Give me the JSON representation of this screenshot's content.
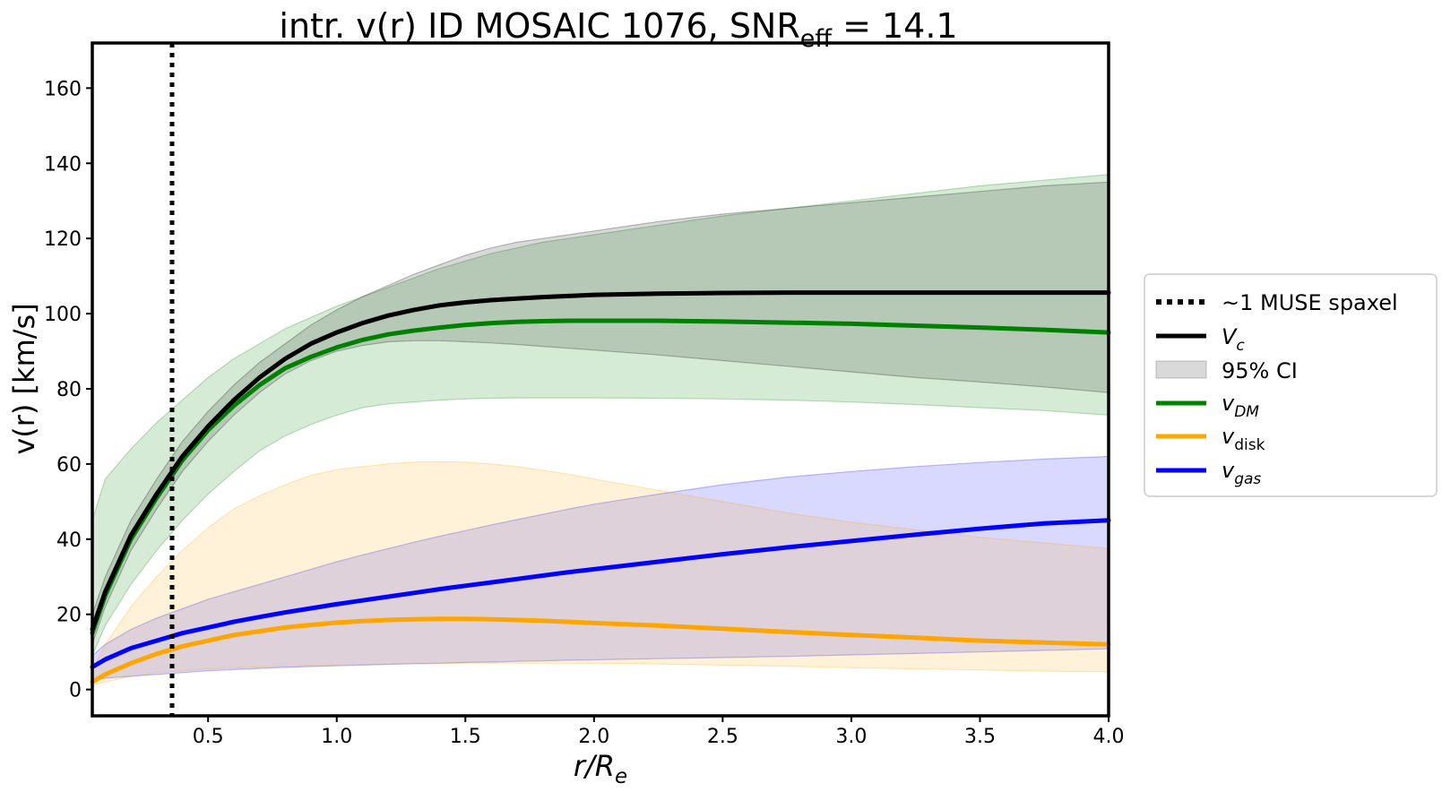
{
  "chart_data": {
    "type": "line",
    "title": {
      "prefix": "intr. v(r) ID MOSAIC 1076, SNR",
      "subscript": "eff",
      "suffix": " = 14.1"
    },
    "xlabel": {
      "base": "r/R",
      "subscript": "e"
    },
    "ylabel": "v(r) [km/s]",
    "xlim": [
      0.05,
      4.0
    ],
    "ylim": [
      -7,
      172
    ],
    "xticks": [
      0.5,
      1.0,
      1.5,
      2.0,
      2.5,
      3.0,
      3.5,
      4.0
    ],
    "xtick_labels": [
      "0.5",
      "1.0",
      "1.5",
      "2.0",
      "2.5",
      "3.0",
      "3.5",
      "4.0"
    ],
    "yticks": [
      0,
      20,
      40,
      60,
      80,
      100,
      120,
      140,
      160
    ],
    "ytick_labels": [
      "0",
      "20",
      "40",
      "60",
      "80",
      "100",
      "120",
      "140",
      "160"
    ],
    "vline": {
      "x": 0.36,
      "label": "~1 MUSE spaxel"
    },
    "x": [
      0.05,
      0.1,
      0.2,
      0.3,
      0.4,
      0.5,
      0.6,
      0.7,
      0.8,
      0.9,
      1.0,
      1.1,
      1.2,
      1.3,
      1.4,
      1.5,
      1.6,
      1.7,
      1.8,
      1.9,
      2.0,
      2.25,
      2.5,
      2.75,
      3.0,
      3.25,
      3.5,
      3.75,
      4.0
    ],
    "series": [
      {
        "name": "v_c",
        "color": "#000000",
        "values": [
          16,
          26,
          41,
          52,
          62,
          70,
          77,
          83,
          88,
          92,
          95,
          97.5,
          99.5,
          101,
          102.2,
          103,
          103.6,
          104,
          104.4,
          104.7,
          105,
          105.3,
          105.5,
          105.6,
          105.6,
          105.6,
          105.6,
          105.6,
          105.6
        ],
        "ci_lower": [
          12,
          22,
          37,
          48,
          58,
          66,
          73,
          79,
          84,
          87.5,
          90,
          91.5,
          92.5,
          92.8,
          92.8,
          92.5,
          92.2,
          91.8,
          91.3,
          90.8,
          90.3,
          89,
          87.5,
          86,
          84.5,
          83,
          81.8,
          80.5,
          79
        ],
        "ci_upper": [
          20,
          30,
          45,
          56,
          66,
          74,
          81,
          87,
          92,
          97,
          101,
          104.5,
          107.5,
          110.5,
          113,
          115.5,
          117.5,
          119,
          120,
          121,
          122,
          124.5,
          126.5,
          128,
          129.5,
          131,
          132.5,
          134,
          135
        ]
      },
      {
        "name": "v_DM",
        "color": "#008000",
        "band_color": "#7cbf7c",
        "values": [
          15,
          25,
          40,
          51,
          61,
          69,
          75.5,
          81,
          85.5,
          88.5,
          91,
          93,
          94.5,
          95.5,
          96.3,
          97,
          97.5,
          97.8,
          98,
          98.1,
          98.1,
          98.1,
          97.9,
          97.6,
          97.3,
          96.8,
          96.3,
          95.7,
          95
        ],
        "ci_lower": [
          9,
          17,
          28,
          37,
          45,
          52,
          58,
          63.5,
          67.5,
          70.5,
          73,
          75,
          76,
          76.5,
          77,
          77.3,
          77.5,
          77.6,
          77.6,
          77.6,
          77.6,
          77.5,
          77.3,
          77,
          76.5,
          75.8,
          75,
          74.2,
          73
        ],
        "ci_upper": [
          45,
          56,
          64,
          71,
          77,
          83,
          88,
          92,
          96,
          99,
          102,
          104.5,
          107,
          109.5,
          112,
          114,
          116,
          117.5,
          119,
          120,
          121,
          123.5,
          126,
          128,
          130,
          132,
          134,
          135.5,
          137
        ]
      },
      {
        "name": "v_disk",
        "color": "#ffa500",
        "band_color": "#ffdca0",
        "values": [
          2,
          4,
          7,
          9.5,
          11.5,
          13,
          14.5,
          15.5,
          16.5,
          17.2,
          17.8,
          18.2,
          18.5,
          18.7,
          18.8,
          18.8,
          18.7,
          18.5,
          18.3,
          18,
          17.7,
          17,
          16.2,
          15.3,
          14.5,
          13.8,
          13,
          12.5,
          12
        ],
        "ci_lower": [
          1,
          2,
          3.5,
          4.5,
          5,
          5.5,
          5.8,
          6,
          6.2,
          6.4,
          6.5,
          6.6,
          6.7,
          6.8,
          6.9,
          7,
          7,
          7,
          7,
          7,
          7,
          6.8,
          6.5,
          6.2,
          5.8,
          5.5,
          5.2,
          4.9,
          4.7
        ],
        "ci_upper": [
          5,
          12,
          22,
          30,
          37,
          43,
          48,
          51.5,
          54.5,
          57,
          58.5,
          59.3,
          60,
          60.5,
          60.6,
          60.5,
          60,
          59.3,
          58.3,
          57.3,
          56,
          53,
          50,
          47,
          44.5,
          42.5,
          40.5,
          39,
          37.5
        ]
      },
      {
        "name": "v_gas",
        "color": "#0000ff",
        "band_color": "#9f9fff",
        "values": [
          6,
          8,
          11,
          13,
          15,
          16.5,
          18,
          19.3,
          20.5,
          21.6,
          22.7,
          23.7,
          24.7,
          25.7,
          26.7,
          27.6,
          28.5,
          29.4,
          30.3,
          31.2,
          32,
          34,
          36,
          37.8,
          39.5,
          41.2,
          42.8,
          44.2,
          45
        ],
        "ci_lower": [
          2.5,
          3,
          3.5,
          4,
          4.5,
          5,
          5.3,
          5.6,
          5.9,
          6.1,
          6.3,
          6.5,
          6.7,
          6.9,
          7,
          7.2,
          7.3,
          7.5,
          7.6,
          7.8,
          7.9,
          8.2,
          8.5,
          8.8,
          9.2,
          9.6,
          10,
          10.4,
          10.8
        ],
        "ci_upper": [
          9,
          12,
          16,
          19,
          21.5,
          24,
          26,
          28,
          30,
          32,
          34,
          35.8,
          37.5,
          39.2,
          40.8,
          42.3,
          43.8,
          45.2,
          46.6,
          48,
          49.3,
          52,
          54.5,
          56.5,
          58,
          59.3,
          60.4,
          61.3,
          62
        ]
      }
    ],
    "legend": {
      "position": "right-center",
      "entries": [
        {
          "key": "vline",
          "label": "~1 MUSE spaxel"
        },
        {
          "key": "vc",
          "label_base": "V",
          "label_sub": "c"
        },
        {
          "key": "ci",
          "label": "95% CI"
        },
        {
          "key": "dm",
          "label_base": "v",
          "label_sub": "DM"
        },
        {
          "key": "disk",
          "label_base": "v",
          "label_sub": "disk"
        },
        {
          "key": "gas",
          "label_base": "v",
          "label_sub": "gas"
        }
      ]
    },
    "grid": false
  }
}
